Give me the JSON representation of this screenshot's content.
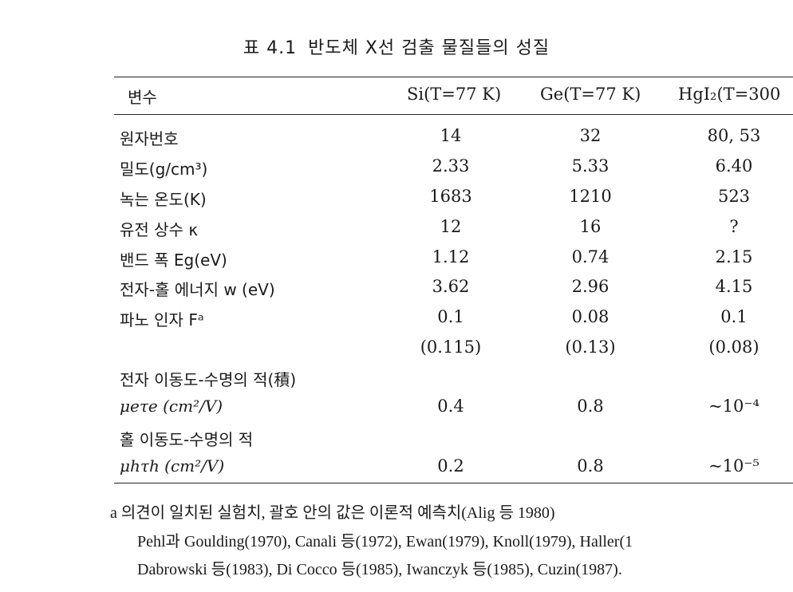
{
  "caption": {
    "label": "표 4.1",
    "title": "반도체 X선 검출 물질들의 성질"
  },
  "header": {
    "variable": "변수",
    "si": "Si(T=77 K)",
    "ge": "Ge(T=77 K)",
    "hgi": "HgI₂(T=300"
  },
  "rows": [
    {
      "label": "원자번호",
      "si": "14",
      "ge": "32",
      "hgi": "80, 53"
    },
    {
      "label": "밀도(g/cm³)",
      "si": "2.33",
      "ge": "5.33",
      "hgi": "6.40"
    },
    {
      "label": "녹는 온도(K)",
      "si": "1683",
      "ge": "1210",
      "hgi": "523"
    },
    {
      "label": "유전 상수 κ",
      "si": "12",
      "ge": "16",
      "hgi": "?"
    },
    {
      "label": "밴드 폭 Eg(eV)",
      "si": "1.12",
      "ge": "0.74",
      "hgi": "2.15"
    },
    {
      "label": "전자-홀 에너지 w (eV)",
      "si": "3.62",
      "ge": "2.96",
      "hgi": "4.15"
    },
    {
      "label": "파노 인자 Fᵃ",
      "si": "0.1",
      "ge": "0.08",
      "hgi": "0.1"
    },
    {
      "label": "",
      "si": "(0.115)",
      "ge": "(0.13)",
      "hgi": "(0.08)"
    },
    {
      "label": "전자 이동도-수명의 적(積)",
      "si": "",
      "ge": "",
      "hgi": ""
    },
    {
      "label": "μeτe (cm²/V)",
      "si": "0.4",
      "ge": "0.8",
      "hgi": "~10⁻⁴"
    },
    {
      "label": "홀 이동도-수명의 적",
      "si": "",
      "ge": "",
      "hgi": ""
    },
    {
      "label": "μhτh (cm²/V)",
      "si": "0.2",
      "ge": "0.8",
      "hgi": "~10⁻⁵"
    }
  ],
  "notes": [
    "a 의견이 일치된 실험치, 괄호 안의 값은 이론적 예측치(Alig 등 1980)",
    "Pehl과 Goulding(1970), Canali 등(1972), Ewan(1979), Knoll(1979), Haller(1",
    "Dabrowski 등(1983), Di Cocco 등(1985), Iwanczyk 등(1985), Cuzin(1987)."
  ]
}
